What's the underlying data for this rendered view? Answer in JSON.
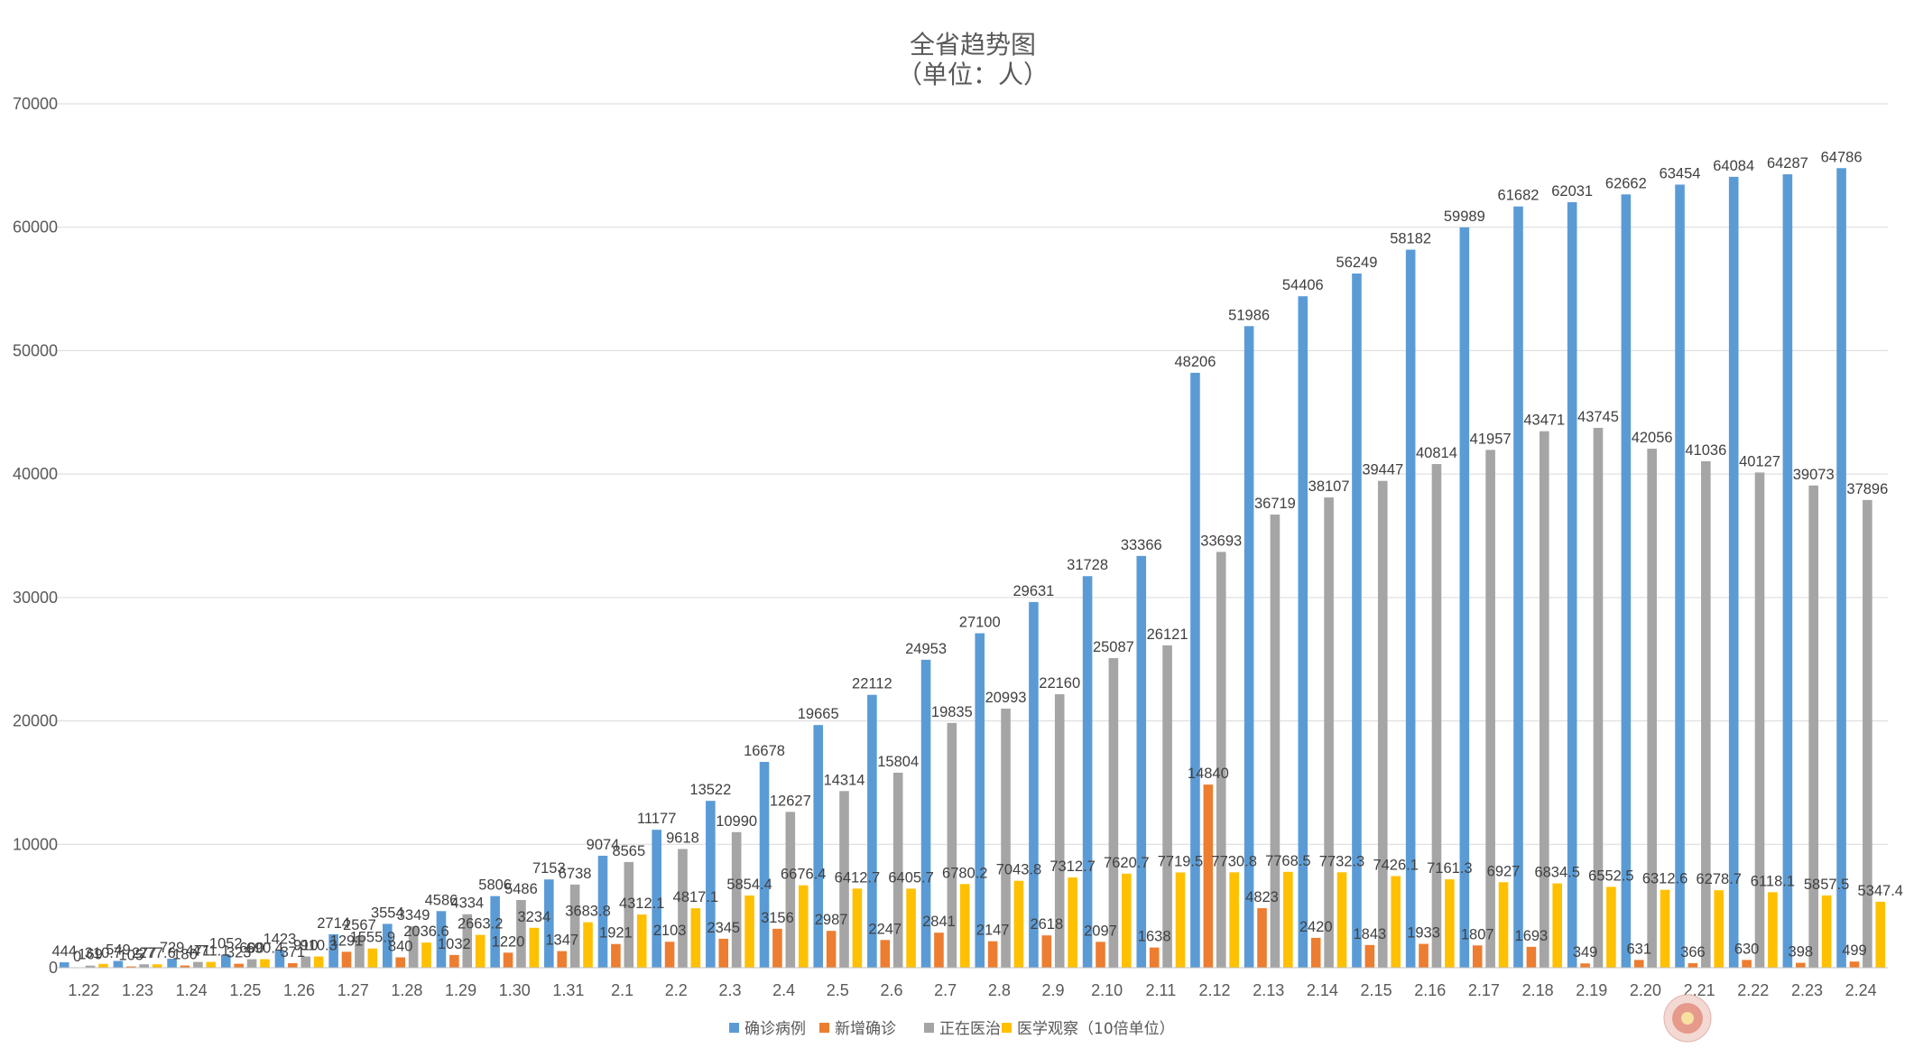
{
  "chart_data": {
    "type": "bar",
    "title": "全省趋势图",
    "subtitle": "（单位：人）",
    "xlabel": "",
    "ylabel": "",
    "ylim": [
      0,
      70000
    ],
    "yticks": [
      "0",
      "10000",
      "20000",
      "30000",
      "40000",
      "50000",
      "60000",
      "70000"
    ],
    "grid": true,
    "legend_position": "bottom",
    "categories": [
      "1.22",
      "1.23",
      "1.24",
      "1.25",
      "1.26",
      "1.27",
      "1.28",
      "1.29",
      "1.30",
      "1.31",
      "2.1",
      "2.2",
      "2.3",
      "2.4",
      "2.5",
      "2.6",
      "2.7",
      "2.8",
      "2.9",
      "2.10",
      "2.11",
      "2.12",
      "2.13",
      "2.14",
      "2.15",
      "2.16",
      "2.17",
      "2.18",
      "2.19",
      "2.20",
      "2.21",
      "2.22",
      "2.23",
      "2.24"
    ],
    "series": [
      {
        "name": "确诊病例",
        "color": "#5b9bd5",
        "values": [
          444,
          549,
          729,
          1052,
          1423,
          2714,
          3554,
          4586,
          5806,
          7153,
          9074,
          11177,
          13522,
          16678,
          19665,
          22112,
          24953,
          27100,
          29631,
          31728,
          33366,
          48206,
          51986,
          54406,
          56249,
          58182,
          59989,
          61682,
          62031,
          62662,
          63454,
          64084,
          64287,
          64786
        ],
        "labels": [
          "444",
          "549",
          "729",
          "1052",
          "1423",
          "2714",
          "3554",
          "4586",
          "5806",
          "7153",
          "9074",
          "11177",
          "13522",
          "16678",
          "19665",
          "22112",
          "24953",
          "27100",
          "29631",
          "31728",
          "33366",
          "48206",
          "51986",
          "54406",
          "56249",
          "58182",
          "59989",
          "61682",
          "62031",
          "62662",
          "63454",
          "64084",
          "64287",
          "64786"
        ]
      },
      {
        "name": "新增确诊",
        "color": "#ed7d31",
        "values": [
          0,
          105,
          180,
          323,
          371,
          1291,
          840,
          1032,
          1220,
          1347,
          1921,
          2103,
          2345,
          3156,
          2987,
          2247,
          2841,
          2147,
          2618,
          2097,
          1638,
          14840,
          4823,
          2420,
          1843,
          1933,
          1807,
          1693,
          349,
          631,
          366,
          630,
          398,
          499
        ],
        "labels": [
          "0",
          "105",
          "180",
          "323",
          "371",
          "1291",
          "840",
          "1032",
          "1220",
          "1347",
          "1921",
          "2103",
          "2345",
          "3156",
          "2987",
          "2247",
          "2841",
          "2147",
          "2618",
          "2097",
          "1638",
          "14840",
          "4823",
          "2420",
          "1843",
          "1933",
          "1807",
          "1693",
          "349",
          "631",
          "366",
          "630",
          "398",
          "499"
        ]
      },
      {
        "name": "正在医治",
        "color": "#a5a5a5",
        "values": [
          169,
          277,
          471,
          690,
          910,
          2567,
          3349,
          4334,
          5486,
          6738,
          8565,
          9618,
          10990,
          12627,
          14314,
          15804,
          19835,
          20993,
          22160,
          25087,
          26121,
          33693,
          36719,
          38107,
          39447,
          40814,
          41957,
          43471,
          43745,
          42056,
          41036,
          40127,
          39073,
          37896
        ],
        "labels": [
          "169",
          "277",
          "471",
          "690",
          "910",
          "2567",
          "3349",
          "4334",
          "5486",
          "6738",
          "8565",
          "9618",
          "10990",
          "12627",
          "14314",
          "15804",
          "19835",
          "20993",
          "22160",
          "25087",
          "26121",
          "33693",
          "36719",
          "38107",
          "39447",
          "40814",
          "41957",
          "43471",
          "43745",
          "42056",
          "41036",
          "40127",
          "39073",
          "37896"
        ]
      },
      {
        "name": "医学观察（10倍单位）",
        "color": "#ffc000",
        "values": [
          310.7,
          277.6,
          471.1,
          690.4,
          910.3,
          1555.9,
          2036.6,
          2663.2,
          3234,
          3683.8,
          4312.1,
          4817.1,
          5854.4,
          6676.4,
          6412.7,
          6405.7,
          6780.2,
          7043.8,
          7312.7,
          7620.7,
          7719.5,
          7730.8,
          7768.5,
          7732.3,
          7426.1,
          7161.3,
          6927,
          6834.5,
          6552.5,
          6312.6,
          6278.7,
          6118.1,
          5857.5,
          5347.4
        ],
        "labels": [
          "310.7",
          "277.6",
          "471.1",
          "690.4",
          "910.3",
          "1555.9",
          "2036.6",
          "2663.2",
          "3234",
          "3683.8",
          "4312.1",
          "4817.1",
          "5854.4",
          "6676.4",
          "6412.7",
          "6405.7",
          "6780.2",
          "7043.8",
          "7312.7",
          "7620.7",
          "7719.5",
          "7730.8",
          "7768.5",
          "7732.3",
          "7426.1",
          "7161.3",
          "6927",
          "6834.5",
          "6552.5",
          "6312.6",
          "6278.7",
          "6118.1",
          "5857.5",
          "5347.4"
        ]
      }
    ]
  }
}
